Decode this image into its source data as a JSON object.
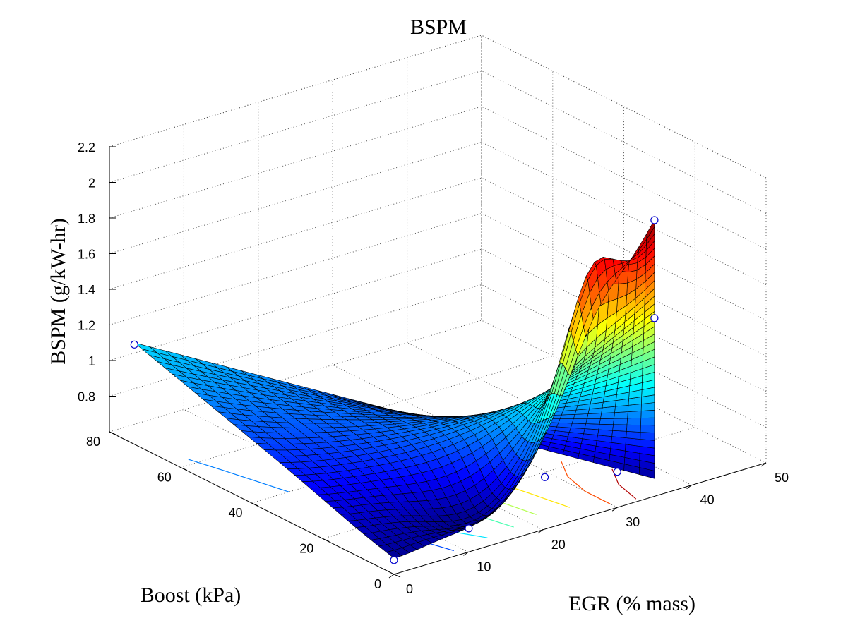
{
  "chart_data": {
    "type": "surface",
    "title": "BSPM",
    "xlabel": "EGR (% mass)",
    "ylabel": "Boost (kPa)",
    "zlabel": "BSPM (g/kW-hr)",
    "xlim": [
      0,
      50
    ],
    "ylim": [
      0,
      80
    ],
    "zlim": [
      0.6,
      2.2
    ],
    "xticks": [
      "0",
      "10",
      "20",
      "30",
      "40",
      "50"
    ],
    "yticks": [
      "0",
      "20",
      "40",
      "60",
      "80"
    ],
    "zticks": [
      "0.8",
      "1",
      "1.2",
      "1.4",
      "1.6",
      "1.8",
      "2",
      "2.2"
    ],
    "grid": true,
    "colormap": "jet",
    "colors": [
      "#00007f",
      "#0000ff",
      "#007fff",
      "#00ffff",
      "#7fff7f",
      "#ffff00",
      "#ff7f00",
      "#ff0000",
      "#7f0000"
    ],
    "marker_color": "#0000cc",
    "measured_points": [
      {
        "egr": 0,
        "boost": 0,
        "bspm": 0.68
      },
      {
        "egr": 0,
        "boost": 73,
        "bspm": 1.16
      },
      {
        "egr": 11,
        "boost": 2,
        "bspm": 0.7
      },
      {
        "egr": 35,
        "boost": 0,
        "bspm": 2.15
      },
      {
        "egr": 35,
        "boost": 0,
        "bspm": 1.6
      },
      {
        "egr": 30,
        "boost": 0,
        "bspm": 0.8
      },
      {
        "egr": 26,
        "boost": 12,
        "bspm": 0.7
      }
    ]
  }
}
